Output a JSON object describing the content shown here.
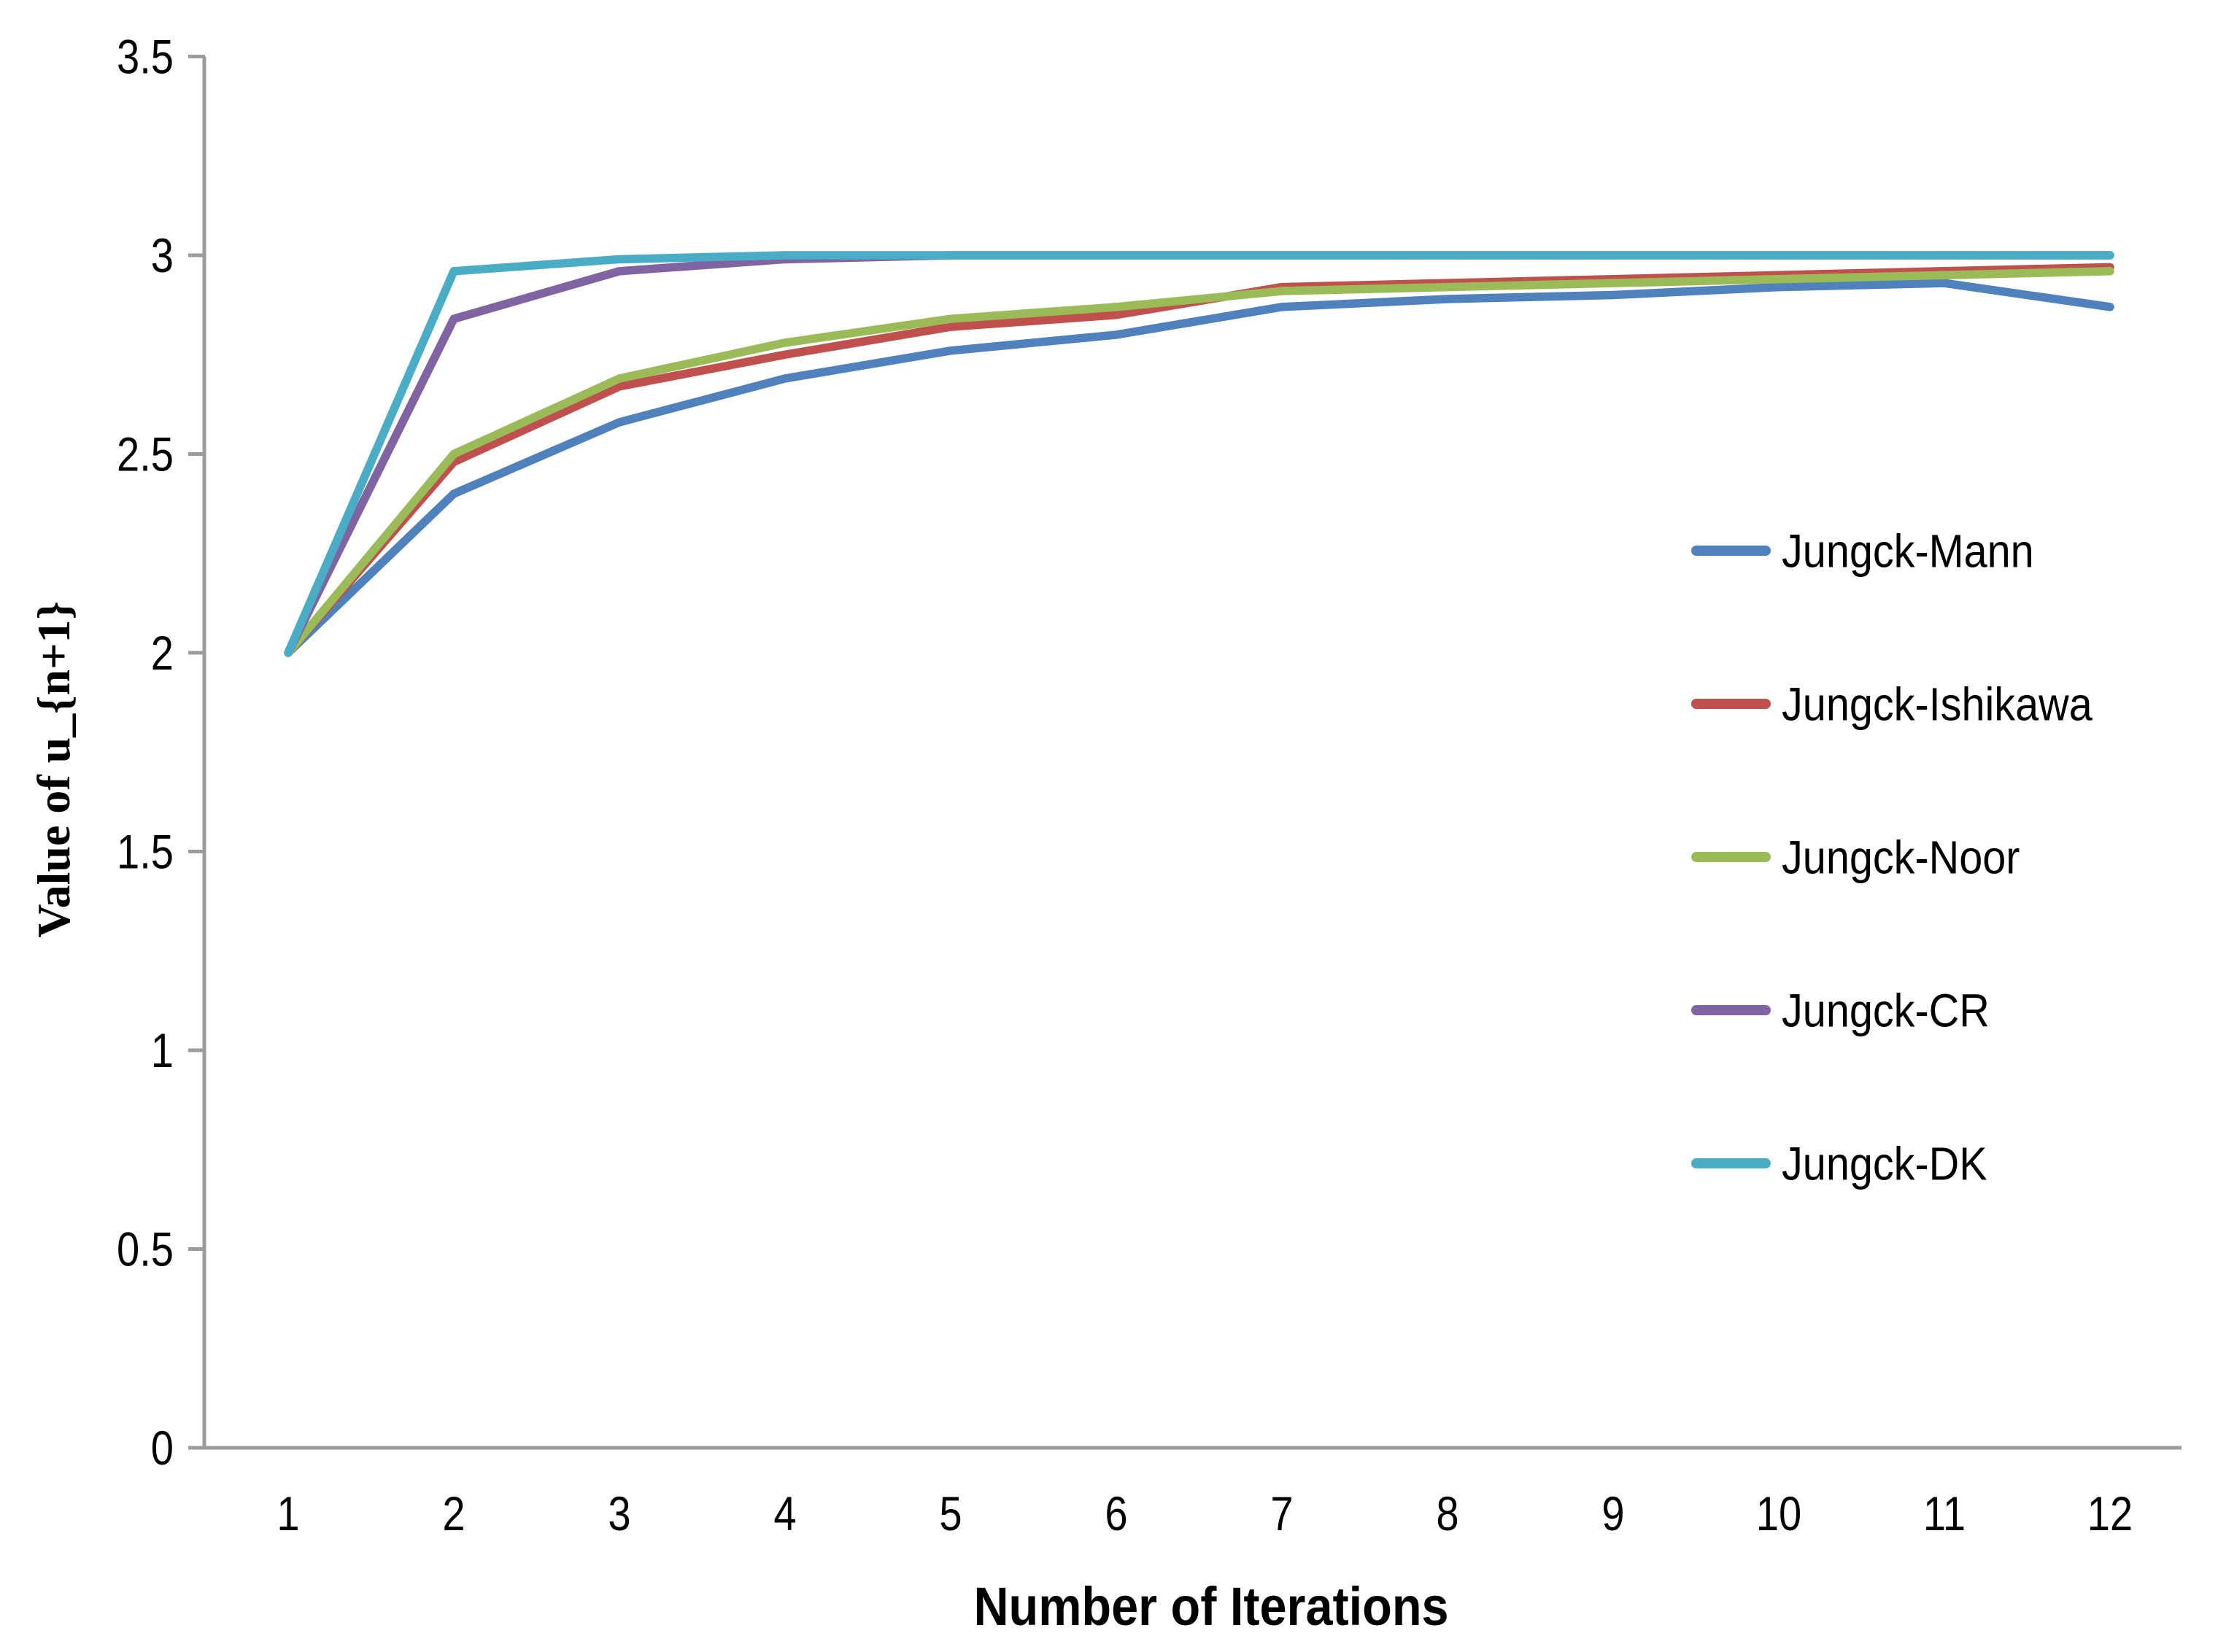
{
  "chart_data": {
    "type": "line",
    "title": "",
    "xlabel": "Number of Iterations",
    "ylabel": "Value of u_{n+1}",
    "x": [
      1,
      2,
      3,
      4,
      5,
      6,
      7,
      8,
      9,
      10,
      11,
      12
    ],
    "xticklabels": [
      "1",
      "2",
      "3",
      "4",
      "5",
      "6",
      "7",
      "8",
      "9",
      "10",
      "11",
      "12"
    ],
    "yticks": [
      0,
      0.5,
      1,
      1.5,
      2,
      2.5,
      3,
      3.5
    ],
    "yticklabels": [
      "0",
      "0.5",
      "1",
      "1.5",
      "2",
      "2.5",
      "3",
      "3.5"
    ],
    "ylim": [
      0,
      3.5
    ],
    "grid": false,
    "legend_position": "middle-right",
    "axis_color": "#9C9C9C",
    "text_color": "#000000",
    "series": [
      {
        "name": "Jungck-Mann",
        "color": "#4F81BD",
        "values": [
          2.0,
          2.4,
          2.58,
          2.69,
          2.76,
          2.8,
          2.87,
          2.89,
          2.9,
          2.92,
          2.93,
          2.87
        ]
      },
      {
        "name": "Jungck-Ishikawa",
        "color": "#C0504D",
        "values": [
          2.0,
          2.48,
          2.67,
          2.75,
          2.82,
          2.85,
          2.92,
          2.93,
          2.94,
          2.95,
          2.96,
          2.97
        ]
      },
      {
        "name": "Jungck-Noor",
        "color": "#9BBB59",
        "values": [
          2.0,
          2.5,
          2.69,
          2.78,
          2.84,
          2.87,
          2.91,
          2.92,
          2.93,
          2.94,
          2.95,
          2.96
        ]
      },
      {
        "name": "Jungck-CR",
        "color": "#8064A2",
        "values": [
          2.0,
          2.84,
          2.96,
          2.99,
          3.0,
          3.0,
          3.0,
          3.0,
          3.0,
          3.0,
          3.0,
          3.0
        ]
      },
      {
        "name": "Jungck-DK",
        "color": "#4BACC6",
        "values": [
          2.0,
          2.96,
          2.99,
          3.0,
          3.0,
          3.0,
          3.0,
          3.0,
          3.0,
          3.0,
          3.0,
          3.0
        ]
      }
    ]
  }
}
